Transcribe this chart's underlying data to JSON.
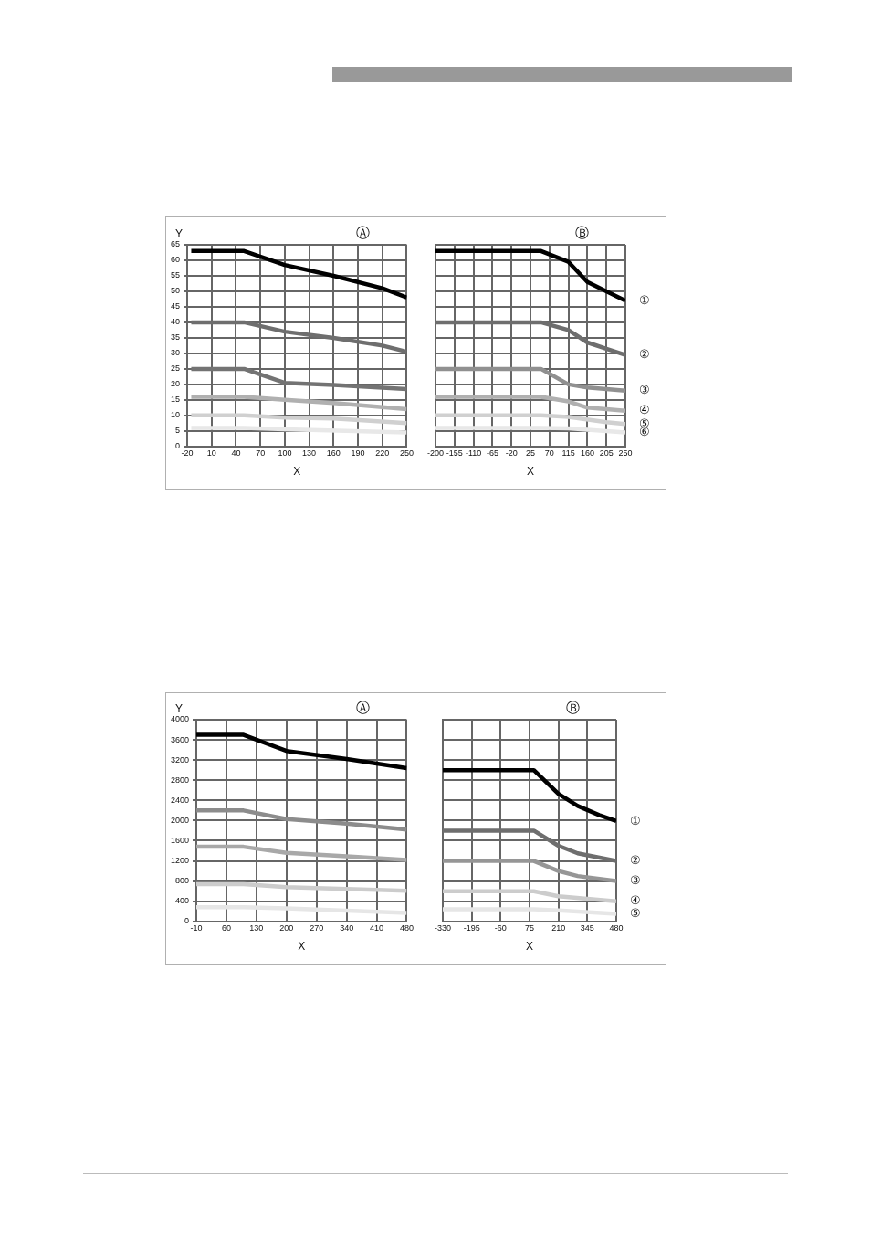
{
  "chart_data": [
    {
      "type": "line",
      "title": "Ⓐ",
      "xlabel": "X",
      "ylabel": "Y",
      "xlim": [
        -20,
        250
      ],
      "xticks": [
        -20,
        10,
        40,
        70,
        100,
        130,
        160,
        190,
        220,
        250
      ],
      "ylim": [
        0,
        65
      ],
      "yticks": [
        0,
        5,
        10,
        15,
        20,
        25,
        30,
        35,
        40,
        45,
        50,
        55,
        60,
        65
      ],
      "grid": true,
      "legend": false,
      "series": [
        {
          "color": "#000000",
          "x": [
            -15,
            50,
            100,
            160,
            220,
            250
          ],
          "values": [
            63,
            63,
            58.5,
            55,
            51,
            48
          ]
        },
        {
          "color": "#6e6e6e",
          "x": [
            -15,
            50,
            100,
            160,
            220,
            250
          ],
          "values": [
            40,
            40,
            37,
            35,
            32.5,
            30.5
          ]
        },
        {
          "color": "#737373",
          "x": [
            -15,
            50,
            100,
            160,
            250
          ],
          "values": [
            25,
            25,
            20.5,
            19.8,
            18.5
          ]
        },
        {
          "color": "#b0b0b0",
          "x": [
            -15,
            50,
            100,
            160,
            250
          ],
          "values": [
            16,
            16,
            15,
            14,
            12
          ]
        },
        {
          "color": "#d0d0d0",
          "x": [
            -15,
            50,
            100,
            160,
            250
          ],
          "values": [
            10,
            10,
            9.3,
            9,
            7.5
          ]
        },
        {
          "color": "#e8e8e8",
          "x": [
            -15,
            50,
            100,
            250
          ],
          "values": [
            6,
            6,
            5.5,
            4.5
          ]
        }
      ]
    },
    {
      "type": "line",
      "title": "Ⓑ",
      "xlabel": "X",
      "xlim": [
        -200,
        250
      ],
      "xticks": [
        -200,
        -155,
        -110,
        -65,
        -20,
        25,
        70,
        115,
        160,
        205,
        250
      ],
      "ylim": [
        0,
        65
      ],
      "yticks": [
        0,
        5,
        10,
        15,
        20,
        25,
        30,
        35,
        40,
        45,
        50,
        55,
        60,
        65
      ],
      "grid": true,
      "legend": false,
      "tick_labels": "x",
      "series": [
        {
          "name": "①",
          "color": "#000000",
          "x": [
            -200,
            50,
            115,
            160,
            205,
            250
          ],
          "values": [
            63,
            63,
            59.5,
            53,
            50,
            47
          ]
        },
        {
          "name": "②",
          "color": "#6e6e6e",
          "x": [
            -200,
            50,
            115,
            160,
            205,
            250
          ],
          "values": [
            40,
            40,
            37.5,
            33.5,
            31.5,
            29.5
          ]
        },
        {
          "name": "③",
          "color": "#909090",
          "x": [
            -200,
            50,
            115,
            160,
            250
          ],
          "values": [
            25,
            25,
            20,
            19,
            18
          ]
        },
        {
          "name": "④",
          "color": "#b0b0b0",
          "x": [
            -200,
            50,
            115,
            160,
            250
          ],
          "values": [
            16,
            16,
            14.5,
            12.5,
            11.5
          ]
        },
        {
          "name": "⑤",
          "color": "#d0d0d0",
          "x": [
            -200,
            50,
            115,
            205,
            250
          ],
          "values": [
            10,
            10,
            9.5,
            7.8,
            7.2
          ]
        },
        {
          "name": "⑥",
          "color": "#e8e8e8",
          "x": [
            -200,
            50,
            115,
            250
          ],
          "values": [
            6,
            6,
            5.8,
            4.5
          ]
        }
      ]
    },
    {
      "type": "line",
      "title": "Ⓐ",
      "xlabel": "X",
      "ylabel": "Y",
      "xlim": [
        -10,
        480
      ],
      "xticks": [
        -10,
        60,
        130,
        200,
        270,
        340,
        410,
        480
      ],
      "ylim": [
        0,
        4000
      ],
      "yticks": [
        0,
        400,
        800,
        1200,
        1600,
        2000,
        2400,
        2800,
        3200,
        3600,
        4000
      ],
      "grid": true,
      "legend": false,
      "series": [
        {
          "color": "#000000",
          "x": [
            -10,
            100,
            200,
            340,
            480
          ],
          "values": [
            3700,
            3700,
            3380,
            3220,
            3040
          ]
        },
        {
          "color": "#8c8c8c",
          "x": [
            -10,
            100,
            200,
            340,
            480
          ],
          "values": [
            2200,
            2200,
            2030,
            1940,
            1820
          ]
        },
        {
          "color": "#a8a8a8",
          "x": [
            -10,
            100,
            200,
            340,
            480
          ],
          "values": [
            1480,
            1480,
            1360,
            1290,
            1220
          ]
        },
        {
          "color": "#cccccc",
          "x": [
            -10,
            100,
            200,
            480
          ],
          "values": [
            740,
            740,
            680,
            610
          ]
        },
        {
          "color": "#e6e6e6",
          "x": [
            -10,
            100,
            200,
            480
          ],
          "values": [
            280,
            280,
            260,
            170
          ]
        }
      ]
    },
    {
      "type": "line",
      "title": "Ⓑ",
      "xlabel": "X",
      "xlim": [
        -330,
        480
      ],
      "xticks": [
        -330,
        -195,
        -60,
        75,
        210,
        345,
        480
      ],
      "ylim": [
        0,
        4000
      ],
      "yticks": [
        0,
        400,
        800,
        1200,
        1600,
        2000,
        2400,
        2800,
        3200,
        3600,
        4000
      ],
      "grid": true,
      "legend": false,
      "tick_labels": "x",
      "series": [
        {
          "name": "①",
          "color": "#000000",
          "x": [
            -330,
            95,
            210,
            300,
            400,
            480
          ],
          "values": [
            3000,
            3000,
            2530,
            2290,
            2110,
            1990
          ]
        },
        {
          "name": "②",
          "color": "#6e6e6e",
          "x": [
            -330,
            95,
            210,
            300,
            480
          ],
          "values": [
            1800,
            1800,
            1500,
            1350,
            1200
          ]
        },
        {
          "name": "③",
          "color": "#969696",
          "x": [
            -330,
            95,
            210,
            300,
            480
          ],
          "values": [
            1200,
            1200,
            1000,
            900,
            800
          ]
        },
        {
          "name": "④",
          "color": "#cccccc",
          "x": [
            -330,
            95,
            210,
            480
          ],
          "values": [
            600,
            600,
            500,
            400
          ]
        },
        {
          "name": "⑤",
          "color": "#e6e6e6",
          "x": [
            -330,
            95,
            210,
            480
          ],
          "values": [
            240,
            240,
            220,
            150
          ]
        }
      ]
    }
  ]
}
